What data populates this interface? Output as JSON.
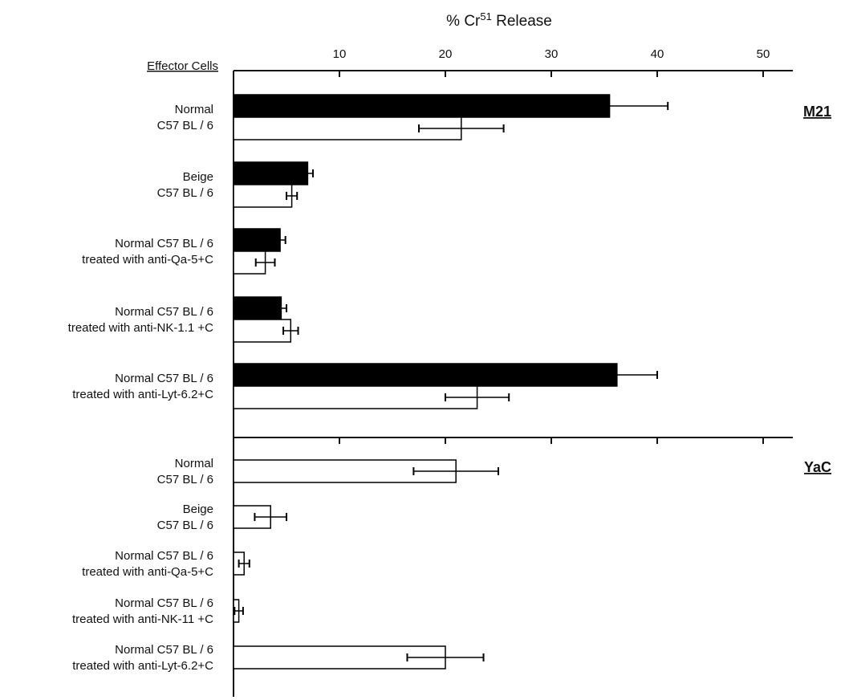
{
  "chart_data": {
    "type": "bar",
    "orientation": "horizontal",
    "title": "% Cr51 Release",
    "title_main": "% Cr",
    "title_sup": "51",
    "title_tail": " Release",
    "ylabel": "Effector Cells",
    "xlim": [
      0,
      53
    ],
    "xticks": [
      10,
      20,
      30,
      40,
      50
    ],
    "grid": false,
    "panels": [
      {
        "name": "M21",
        "groups": [
          {
            "label": [
              "Normal",
              "C57 BL / 6"
            ],
            "bars": [
              {
                "fill": "filled",
                "value": 35.5,
                "error": 5.5
              },
              {
                "fill": "open",
                "value": 21.5,
                "error": 4.0
              }
            ]
          },
          {
            "label": [
              "Beige",
              "C57 BL / 6"
            ],
            "bars": [
              {
                "fill": "filled",
                "value": 7.0,
                "error": 0.5
              },
              {
                "fill": "open",
                "value": 5.5,
                "error": 0.5
              }
            ]
          },
          {
            "label": [
              "Normal C57 BL / 6",
              "treated with anti-Qa-5+C"
            ],
            "bars": [
              {
                "fill": "filled",
                "value": 4.4,
                "error": 0.5
              },
              {
                "fill": "open",
                "value": 3.0,
                "error": 0.9
              }
            ]
          },
          {
            "label": [
              "Normal C57 BL / 6",
              "treated with anti-NK-1.1 +C"
            ],
            "bars": [
              {
                "fill": "filled",
                "value": 4.5,
                "error": 0.5
              },
              {
                "fill": "open",
                "value": 5.4,
                "error": 0.7
              }
            ]
          },
          {
            "label": [
              "Normal C57 BL / 6",
              "treated with anti-Lyt-6.2+C"
            ],
            "bars": [
              {
                "fill": "filled",
                "value": 36.2,
                "error": 3.8
              },
              {
                "fill": "open",
                "value": 23.0,
                "error": 3.0
              }
            ]
          }
        ]
      },
      {
        "name": "YaC",
        "groups": [
          {
            "label": [
              "Normal",
              "C57 BL / 6"
            ],
            "bars": [
              {
                "fill": "open",
                "value": 21.0,
                "error": 4.0
              }
            ]
          },
          {
            "label": [
              "Beige",
              "C57 BL / 6"
            ],
            "bars": [
              {
                "fill": "open",
                "value": 3.5,
                "error": 1.5
              }
            ]
          },
          {
            "label": [
              "Normal C57 BL / 6",
              "treated with anti-Qa-5+C"
            ],
            "bars": [
              {
                "fill": "open",
                "value": 1.0,
                "error": 0.5
              }
            ]
          },
          {
            "label": [
              "Normal C57 BL / 6",
              "treated with anti-NK-11 +C"
            ],
            "bars": [
              {
                "fill": "open",
                "value": 0.5,
                "error": 0.4
              }
            ]
          },
          {
            "label": [
              "Normal C57 BL / 6",
              "treated with anti-Lyt-6.2+C"
            ],
            "bars": [
              {
                "fill": "open",
                "value": 20.0,
                "error": 3.6
              }
            ]
          }
        ]
      }
    ]
  }
}
